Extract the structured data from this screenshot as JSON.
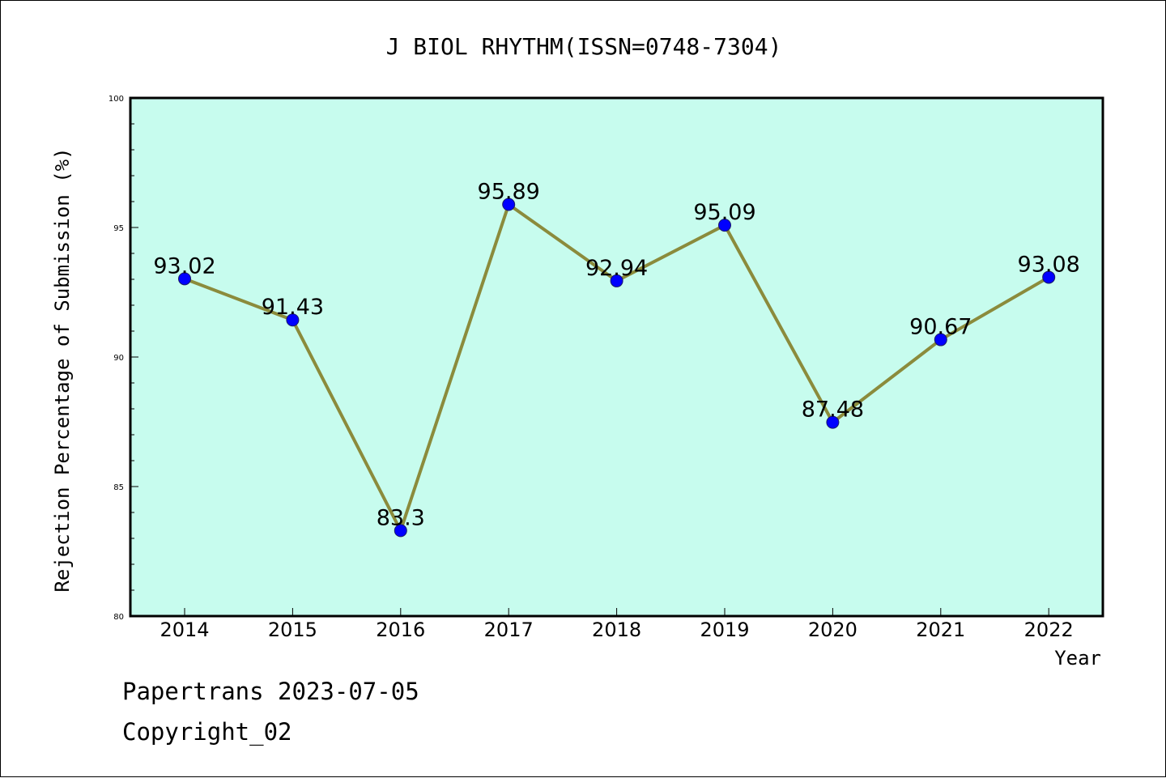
{
  "chart_data": {
    "type": "line",
    "title": "J BIOL RHYTHM(ISSN=0748-7304)",
    "xlabel": "Year",
    "ylabel": "Rejection Percentage of Submission (%)",
    "categories": [
      "2014",
      "2015",
      "2016",
      "2017",
      "2018",
      "2019",
      "2020",
      "2021",
      "2022"
    ],
    "values": [
      93.02,
      91.43,
      83.3,
      95.89,
      92.94,
      95.09,
      87.48,
      90.67,
      93.08
    ],
    "data_labels": [
      "93.02",
      "91.43",
      "83.3",
      "95.89",
      "92.94",
      "95.09",
      "87.48",
      "90.67",
      "93.08"
    ],
    "ylim": [
      80,
      100
    ],
    "yticks": [
      80,
      85,
      90,
      95,
      100
    ],
    "grid": false,
    "legend": "none",
    "colors": {
      "plot_background": "#c7fcee",
      "line": "#8b8b3c",
      "marker": "#0000ff"
    }
  },
  "footer": {
    "line1": "Papertrans 2023-07-05",
    "line2": "Copyright_02"
  }
}
